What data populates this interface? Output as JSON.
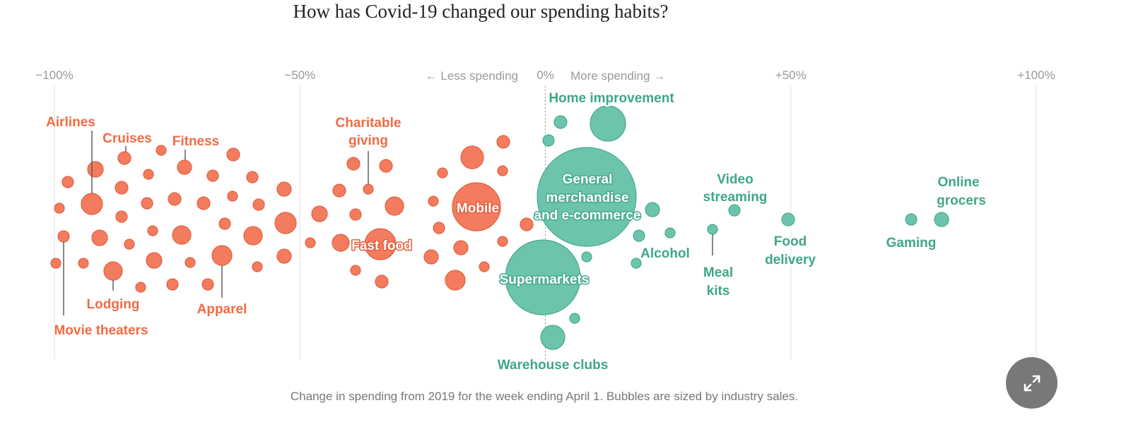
{
  "title": "How has Covid-19 changed our spending habits?",
  "caption": "Change in spending from 2019 for the week ending April 1. Bubbles are sized by industry sales.",
  "expand_icon": "expand-arrows-icon",
  "colors": {
    "decrease": "#f47c5e",
    "decrease_stroke": "#e0603f",
    "decrease_label": "#f26a44",
    "increase": "#6cc4ac",
    "increase_stroke": "#47a98f",
    "increase_label": "#3fa68a",
    "grid": "#e6e6e6",
    "axis_text": "#999999",
    "expand_button": "#787878"
  },
  "chart_data": {
    "type": "scatter",
    "title": "How has Covid-19 changed our spending habits?",
    "xlabel": "Change in spending from 2019 for the week ending April 1. Bubbles are sized by industry sales.",
    "x_range": [
      -100,
      100
    ],
    "x_ticks": [
      {
        "value": -100,
        "label": "−100%"
      },
      {
        "value": -50,
        "label": "−50%"
      },
      {
        "value": 0,
        "label": "0%"
      },
      {
        "value": 50,
        "label": "+50%"
      },
      {
        "value": 100,
        "label": "+100%"
      }
    ],
    "direction_labels": {
      "less": "← Less spending",
      "more": "More spending →"
    },
    "grid": true,
    "size_encoding": "industry sales",
    "labeled_points": [
      {
        "name": "Airlines",
        "x": -93,
        "size": "small"
      },
      {
        "name": "Cruises",
        "x": -88,
        "size": "small"
      },
      {
        "name": "Fitness",
        "x": -74,
        "size": "small"
      },
      {
        "name": "Movie theaters",
        "x": -99,
        "size": "small"
      },
      {
        "name": "Lodging",
        "x": -88,
        "size": "small"
      },
      {
        "name": "Apparel",
        "x": -68,
        "size": "medium"
      },
      {
        "name": "Charitable giving",
        "x": -36,
        "size": "small"
      },
      {
        "name": "Mobile",
        "x": -15,
        "size": "large"
      },
      {
        "name": "Fast food",
        "x": -33,
        "size": "medium"
      },
      {
        "name": "Home improvement",
        "x": 13,
        "size": "large"
      },
      {
        "name": "General merchandise and e-commerce",
        "x": 9,
        "size": "very large"
      },
      {
        "name": "Supermarkets",
        "x": 0,
        "size": "very large"
      },
      {
        "name": "Warehouse clubs",
        "x": 2,
        "size": "medium"
      },
      {
        "name": "Alcohol",
        "x": 19,
        "size": "small"
      },
      {
        "name": "Video streaming",
        "x": 38,
        "size": "small"
      },
      {
        "name": "Meal kits",
        "x": 34,
        "size": "small"
      },
      {
        "name": "Food delivery",
        "x": 49,
        "size": "small"
      },
      {
        "name": "Gaming",
        "x": 75,
        "size": "small"
      },
      {
        "name": "Online grocers",
        "x": 81,
        "size": "small"
      }
    ]
  },
  "labels": {
    "airlines": "Airlines",
    "cruises": "Cruises",
    "fitness": "Fitness",
    "movie_theaters": "Movie theaters",
    "lodging": "Lodging",
    "apparel": "Apparel",
    "charitable_line1": "Charitable",
    "charitable_line2": "giving",
    "mobile": "Mobile",
    "fast_food": "Fast food",
    "home_improvement": "Home improvement",
    "general_line1": "General",
    "general_line2": "merchandise",
    "general_line3": "and e-commerce",
    "supermarkets": "Supermarkets",
    "warehouse_clubs": "Warehouse clubs",
    "alcohol": "Alcohol",
    "video_line1": "Video",
    "video_line2": "streaming",
    "meal_line1": "Meal",
    "meal_line2": "kits",
    "food_line1": "Food",
    "food_line2": "delivery",
    "gaming": "Gaming",
    "online_line1": "Online",
    "online_line2": "grocers"
  }
}
